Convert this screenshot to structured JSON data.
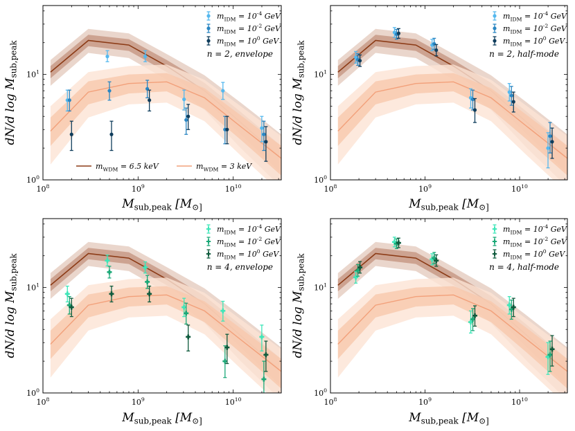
{
  "figure": {
    "x_axis_label": "M_sub,peak [M_⊙]",
    "y_axis_label": "dN/d log M_sub,peak"
  },
  "colors": {
    "wdm_6p5": "#8b3a15",
    "wdm_6p5_band_inner": "#c89a86",
    "wdm_6p5_band_outer": "#e6cfc3",
    "wdm_3": "#f2a07a",
    "wdm_3_band_inner": "#f8c8ad",
    "wdm_3_band_outer": "#fde3d4",
    "blue_light": "#55b8ee",
    "blue_mid": "#2a86c2",
    "blue_dark": "#0f3d5c",
    "green_light": "#3ee6b8",
    "green_mid": "#1aa877",
    "green_dark": "#0e5a3c"
  },
  "chart_data": [
    {
      "type": "line",
      "panel": "top-left",
      "annotation": "n = 2,  envelope",
      "xlabel": "M_sub,peak [M_⊙]",
      "ylabel": "dN/d log M_sub,peak",
      "xscale": "log",
      "yscale": "log",
      "xlim": [
        100000000.0,
        32000000000.0
      ],
      "ylim": [
        1,
        45
      ],
      "xticks": [
        {
          "value": 100000000.0,
          "label": "10^8"
        },
        {
          "value": 1000000000.0,
          "label": "10^9"
        },
        {
          "value": 10000000000.0,
          "label": "10^10"
        }
      ],
      "yticks": [
        {
          "value": 1,
          "label": "10^0"
        },
        {
          "value": 10,
          "label": "10^1"
        }
      ],
      "idm_legend": [
        "m_IDM = 10^-4 GeV",
        "m_IDM = 10^-2 GeV",
        "m_IDM = 10^0 GeV"
      ],
      "wdm_legend": [
        "m_WDM = 6.5 keV",
        "m_WDM = 3 keV"
      ],
      "idm_series": [
        {
          "name": "m_IDM = 10^-4 GeV",
          "color_key": "blue_light",
          "marker": "o",
          "points": [
            {
              "x": 190000000.0,
              "y": 5.7,
              "lo": 4.5,
              "hi": 7.1
            },
            {
              "x": 500000000.0,
              "y": 14.8,
              "lo": 13.2,
              "hi": 16.8
            },
            {
              "x": 1250000000.0,
              "y": 14.8,
              "lo": 13.2,
              "hi": 16.8
            },
            {
              "x": 3200000000.0,
              "y": 5.8,
              "lo": 4.6,
              "hi": 7.1
            },
            {
              "x": 8200000000.0,
              "y": 7.0,
              "lo": 5.8,
              "hi": 8.4
            },
            {
              "x": 21000000000.0,
              "y": 3.1,
              "lo": 2.3,
              "hi": 4.0
            }
          ]
        },
        {
          "name": "m_IDM = 10^-2 GeV",
          "color_key": "blue_mid",
          "marker": "o",
          "points": [
            {
              "x": 190000000.0,
              "y": 5.7,
              "lo": 4.5,
              "hi": 7.1
            },
            {
              "x": 500000000.0,
              "y": 7.0,
              "lo": 5.7,
              "hi": 8.5
            },
            {
              "x": 1250000000.0,
              "y": 7.3,
              "lo": 6.0,
              "hi": 8.8
            },
            {
              "x": 3200000000.0,
              "y": 3.7,
              "lo": 2.7,
              "hi": 4.8
            },
            {
              "x": 8200000000.0,
              "y": 3.0,
              "lo": 2.2,
              "hi": 4.0
            },
            {
              "x": 21000000000.0,
              "y": 2.7,
              "lo": 1.9,
              "hi": 3.6
            }
          ]
        },
        {
          "name": "m_IDM = 10^0 GeV",
          "color_key": "blue_dark",
          "marker": "o",
          "points": [
            {
              "x": 190000000.0,
              "y": 2.7,
              "lo": 1.9,
              "hi": 3.6
            },
            {
              "x": 500000000.0,
              "y": 2.7,
              "lo": 1.9,
              "hi": 3.6
            },
            {
              "x": 1250000000.0,
              "y": 5.7,
              "lo": 4.5,
              "hi": 7.1
            },
            {
              "x": 3200000000.0,
              "y": 4.0,
              "lo": 3.0,
              "hi": 5.2
            },
            {
              "x": 8200000000.0,
              "y": 3.0,
              "lo": 2.2,
              "hi": 4.0
            },
            {
              "x": 21000000000.0,
              "y": 2.3,
              "lo": 1.5,
              "hi": 3.2
            }
          ]
        }
      ]
    },
    {
      "type": "line",
      "panel": "top-right",
      "annotation": "n = 2,  half-mode",
      "xlabel": "M_sub,peak [M_⊙]",
      "ylabel": "dN/d log M_sub,peak",
      "xscale": "log",
      "yscale": "log",
      "xlim": [
        100000000.0,
        32000000000.0
      ],
      "ylim": [
        1,
        45
      ],
      "xticks": [
        {
          "value": 100000000.0,
          "label": "10^8"
        },
        {
          "value": 1000000000.0,
          "label": "10^9"
        },
        {
          "value": 10000000000.0,
          "label": "10^10"
        }
      ],
      "yticks": [
        {
          "value": 1,
          "label": "10^0"
        },
        {
          "value": 10,
          "label": "10^1"
        }
      ],
      "idm_legend": [
        "m_IDM = 10^-4 GeV",
        "m_IDM = 10^-2 GeV",
        "m_IDM = 10^0 GeV"
      ],
      "wdm_legend": [],
      "idm_series": [
        {
          "name": "m_IDM = 10^-4 GeV",
          "color_key": "blue_light",
          "marker": "o",
          "points": [
            {
              "x": 195000000.0,
              "y": 14.5,
              "lo": 12.8,
              "hi": 16.5
            },
            {
              "x": 500000000.0,
              "y": 25.0,
              "lo": 22.5,
              "hi": 27.8
            },
            {
              "x": 1250000000.0,
              "y": 19.0,
              "lo": 16.8,
              "hi": 21.5
            },
            {
              "x": 3200000000.0,
              "y": 6.0,
              "lo": 4.8,
              "hi": 7.3
            },
            {
              "x": 8200000000.0,
              "y": 6.8,
              "lo": 5.6,
              "hi": 8.2
            },
            {
              "x": 21000000000.0,
              "y": 2.0,
              "lo": 1.3,
              "hi": 2.8
            }
          ]
        },
        {
          "name": "m_IDM = 10^-2 GeV",
          "color_key": "blue_mid",
          "marker": "o",
          "points": [
            {
              "x": 195000000.0,
              "y": 13.8,
              "lo": 12.2,
              "hi": 15.7
            },
            {
              "x": 500000000.0,
              "y": 24.0,
              "lo": 21.6,
              "hi": 26.7
            },
            {
              "x": 1250000000.0,
              "y": 19.5,
              "lo": 17.3,
              "hi": 22.0
            },
            {
              "x": 3200000000.0,
              "y": 5.8,
              "lo": 4.6,
              "hi": 7.1
            },
            {
              "x": 8200000000.0,
              "y": 6.3,
              "lo": 5.1,
              "hi": 7.7
            },
            {
              "x": 21000000000.0,
              "y": 2.6,
              "lo": 1.8,
              "hi": 3.5
            }
          ]
        },
        {
          "name": "m_IDM = 10^0 GeV",
          "color_key": "blue_dark",
          "marker": "o",
          "points": [
            {
              "x": 195000000.0,
              "y": 13.5,
              "lo": 11.9,
              "hi": 15.3
            },
            {
              "x": 500000000.0,
              "y": 24.5,
              "lo": 22.0,
              "hi": 27.2
            },
            {
              "x": 1250000000.0,
              "y": 17.0,
              "lo": 15.0,
              "hi": 19.2
            },
            {
              "x": 3200000000.0,
              "y": 4.6,
              "lo": 3.5,
              "hi": 5.9
            },
            {
              "x": 8200000000.0,
              "y": 5.5,
              "lo": 4.4,
              "hi": 6.8
            },
            {
              "x": 21000000000.0,
              "y": 2.3,
              "lo": 1.6,
              "hi": 3.1
            }
          ]
        }
      ]
    },
    {
      "type": "line",
      "panel": "bottom-left",
      "annotation": "n = 4,  envelope",
      "xlabel": "M_sub,peak [M_⊙]",
      "ylabel": "dN/d log M_sub,peak",
      "xscale": "log",
      "yscale": "log",
      "xlim": [
        100000000.0,
        32000000000.0
      ],
      "ylim": [
        1,
        45
      ],
      "xticks": [
        {
          "value": 100000000.0,
          "label": "10^8"
        },
        {
          "value": 1000000000.0,
          "label": "10^9"
        },
        {
          "value": 10000000000.0,
          "label": "10^10"
        }
      ],
      "yticks": [
        {
          "value": 1,
          "label": "10^0"
        },
        {
          "value": 10,
          "label": "10^1"
        }
      ],
      "idm_legend": [
        "m_IDM = 10^-4 GeV",
        "m_IDM = 10^-2 GeV",
        "m_IDM = 10^0 GeV"
      ],
      "wdm_legend": [],
      "idm_series": [
        {
          "name": "m_IDM = 10^-4 GeV",
          "color_key": "green_light",
          "marker": "P",
          "points": [
            {
              "x": 190000000.0,
              "y": 8.7,
              "lo": 7.3,
              "hi": 10.3
            },
            {
              "x": 500000000.0,
              "y": 18.0,
              "lo": 16.0,
              "hi": 20.3
            },
            {
              "x": 1250000000.0,
              "y": 15.5,
              "lo": 13.7,
              "hi": 17.5
            },
            {
              "x": 3200000000.0,
              "y": 6.5,
              "lo": 5.3,
              "hi": 7.9
            },
            {
              "x": 8200000000.0,
              "y": 6.0,
              "lo": 4.8,
              "hi": 7.4
            },
            {
              "x": 21000000000.0,
              "y": 3.4,
              "lo": 2.5,
              "hi": 4.4
            }
          ]
        },
        {
          "name": "m_IDM = 10^-2 GeV",
          "color_key": "green_mid",
          "marker": "P",
          "points": [
            {
              "x": 190000000.0,
              "y": 6.8,
              "lo": 5.6,
              "hi": 8.2
            },
            {
              "x": 500000000.0,
              "y": 14.0,
              "lo": 12.3,
              "hi": 15.9
            },
            {
              "x": 1250000000.0,
              "y": 11.3,
              "lo": 9.8,
              "hi": 13.0
            },
            {
              "x": 3200000000.0,
              "y": 5.7,
              "lo": 4.5,
              "hi": 7.1
            },
            {
              "x": 8200000000.0,
              "y": 2.0,
              "lo": 1.4,
              "hi": 2.8
            },
            {
              "x": 21000000000.0,
              "y": 1.35,
              "lo": 0.9,
              "hi": 2.0
            }
          ]
        },
        {
          "name": "m_IDM = 10^0 GeV",
          "color_key": "green_dark",
          "marker": "P",
          "points": [
            {
              "x": 190000000.0,
              "y": 6.5,
              "lo": 5.3,
              "hi": 7.9
            },
            {
              "x": 500000000.0,
              "y": 8.7,
              "lo": 7.3,
              "hi": 10.3
            },
            {
              "x": 1250000000.0,
              "y": 8.7,
              "lo": 7.3,
              "hi": 10.3
            },
            {
              "x": 3200000000.0,
              "y": 3.4,
              "lo": 2.5,
              "hi": 4.4
            },
            {
              "x": 8200000000.0,
              "y": 2.7,
              "lo": 1.9,
              "hi": 3.6
            },
            {
              "x": 21000000000.0,
              "y": 2.3,
              "lo": 1.6,
              "hi": 3.1
            }
          ]
        }
      ]
    },
    {
      "type": "line",
      "panel": "bottom-right",
      "annotation": "n = 4,  half-mode",
      "xlabel": "M_sub,peak [M_⊙]",
      "ylabel": "dN/d log M_sub,peak",
      "xscale": "log",
      "yscale": "log",
      "xlim": [
        100000000.0,
        32000000000.0
      ],
      "ylim": [
        1,
        45
      ],
      "xticks": [
        {
          "value": 100000000.0,
          "label": "10^8"
        },
        {
          "value": 1000000000.0,
          "label": "10^9"
        },
        {
          "value": 10000000000.0,
          "label": "10^10"
        }
      ],
      "yticks": [
        {
          "value": 1,
          "label": "10^0"
        },
        {
          "value": 10,
          "label": "10^1"
        }
      ],
      "idm_legend": [
        "m_IDM = 10^-4 GeV",
        "m_IDM = 10^-2 GeV",
        "m_IDM = 10^0 GeV"
      ],
      "wdm_legend": [],
      "idm_series": [
        {
          "name": "m_IDM = 10^-4 GeV",
          "color_key": "green_light",
          "marker": "P",
          "points": [
            {
              "x": 195000000.0,
              "y": 12.5,
              "lo": 11.0,
              "hi": 14.2
            },
            {
              "x": 500000000.0,
              "y": 27.0,
              "lo": 24.3,
              "hi": 30.0
            },
            {
              "x": 1250000000.0,
              "y": 18.5,
              "lo": 16.4,
              "hi": 20.9
            },
            {
              "x": 3200000000.0,
              "y": 4.7,
              "lo": 3.7,
              "hi": 6.0
            },
            {
              "x": 8200000000.0,
              "y": 6.8,
              "lo": 5.6,
              "hi": 8.2
            },
            {
              "x": 21000000000.0,
              "y": 2.2,
              "lo": 1.5,
              "hi": 3.0
            }
          ]
        },
        {
          "name": "m_IDM = 10^-2 GeV",
          "color_key": "green_mid",
          "marker": "P",
          "points": [
            {
              "x": 195000000.0,
              "y": 14.5,
              "lo": 12.8,
              "hi": 16.5
            },
            {
              "x": 500000000.0,
              "y": 26.0,
              "lo": 23.4,
              "hi": 28.9
            },
            {
              "x": 1250000000.0,
              "y": 19.0,
              "lo": 16.8,
              "hi": 21.5
            },
            {
              "x": 3200000000.0,
              "y": 5.0,
              "lo": 3.9,
              "hi": 6.3
            },
            {
              "x": 8200000000.0,
              "y": 6.2,
              "lo": 5.0,
              "hi": 7.6
            },
            {
              "x": 21000000000.0,
              "y": 2.3,
              "lo": 1.6,
              "hi": 3.1
            }
          ]
        },
        {
          "name": "m_IDM = 10^0 GeV",
          "color_key": "green_dark",
          "marker": "P",
          "points": [
            {
              "x": 195000000.0,
              "y": 15.5,
              "lo": 13.7,
              "hi": 17.6
            },
            {
              "x": 500000000.0,
              "y": 26.5,
              "lo": 23.9,
              "hi": 29.4
            },
            {
              "x": 1250000000.0,
              "y": 18.0,
              "lo": 15.9,
              "hi": 20.4
            },
            {
              "x": 3200000000.0,
              "y": 5.4,
              "lo": 4.3,
              "hi": 6.7
            },
            {
              "x": 8200000000.0,
              "y": 6.5,
              "lo": 5.3,
              "hi": 7.9
            },
            {
              "x": 21000000000.0,
              "y": 2.6,
              "lo": 1.8,
              "hi": 3.5
            }
          ]
        }
      ]
    }
  ],
  "wdm_models": [
    {
      "name": "m_WDM = 6.5 keV",
      "color_key": "wdm_6p5",
      "x": [
        120000000.0,
        300000000.0,
        800000000.0,
        2000000000.0,
        5000000000.0,
        12000000000.0,
        32000000000.0
      ],
      "median": [
        10.5,
        21.0,
        19.0,
        12.0,
        7.0,
        3.5,
        1.6
      ],
      "inner_lo": [
        9.2,
        18.5,
        16.7,
        10.5,
        5.8,
        2.7,
        1.15
      ],
      "inner_hi": [
        12.0,
        23.8,
        21.6,
        13.7,
        8.3,
        4.4,
        2.1
      ],
      "outer_lo": [
        7.8,
        16.0,
        14.3,
        8.9,
        4.6,
        2.0,
        0.85
      ],
      "outer_hi": [
        13.7,
        27.0,
        24.5,
        15.6,
        9.8,
        5.4,
        2.7
      ]
    },
    {
      "name": "m_WDM = 3 keV",
      "color_key": "wdm_3",
      "x": [
        120000000.0,
        300000000.0,
        800000000.0,
        2000000000.0,
        5000000000.0,
        12000000000.0,
        32000000000.0
      ],
      "median": [
        2.9,
        6.8,
        8.2,
        8.5,
        6.0,
        3.2,
        1.6
      ],
      "inner_lo": [
        2.1,
        5.2,
        6.6,
        6.9,
        4.7,
        2.4,
        1.1
      ],
      "inner_hi": [
        3.9,
        8.6,
        10.0,
        10.3,
        7.4,
        4.1,
        2.1
      ],
      "outer_lo": [
        1.4,
        3.9,
        5.2,
        5.4,
        3.6,
        1.7,
        0.75
      ],
      "outer_hi": [
        5.0,
        10.5,
        12.0,
        12.4,
        8.9,
        5.0,
        2.6
      ]
    }
  ]
}
